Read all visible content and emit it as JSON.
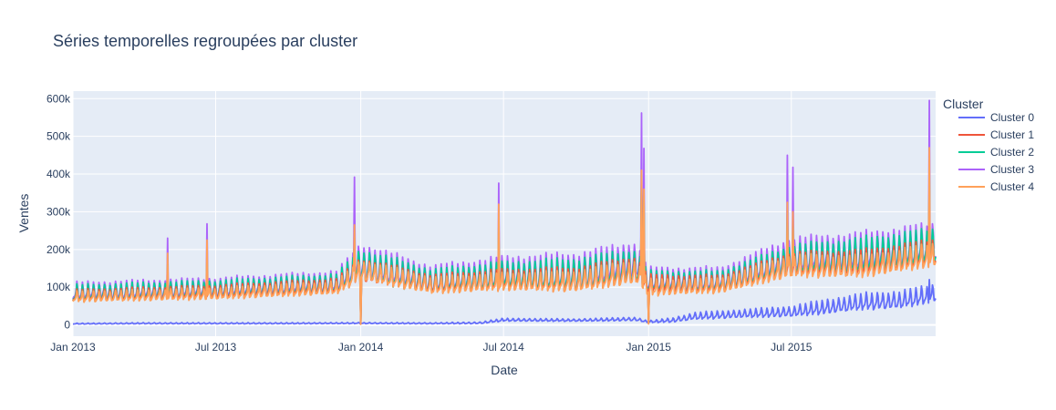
{
  "chart_data": {
    "type": "line",
    "title": "Séries temporelles regroupées par cluster",
    "xlabel": "Date",
    "ylabel": "Ventes",
    "x_range": [
      "2013-01-01",
      "2015-12-31"
    ],
    "ylim": [
      -30000,
      620000
    ],
    "x_ticks": [
      {
        "date": "2013-01-01",
        "label": "Jan 2013"
      },
      {
        "date": "2013-07-01",
        "label": "Jul 2013"
      },
      {
        "date": "2014-01-01",
        "label": "Jan 2014"
      },
      {
        "date": "2014-07-01",
        "label": "Jul 2014"
      },
      {
        "date": "2015-01-01",
        "label": "Jan 2015"
      },
      {
        "date": "2015-07-01",
        "label": "Jul 2015"
      }
    ],
    "y_ticks": [
      {
        "value": 0,
        "label": "0"
      },
      {
        "value": 100000,
        "label": "100k"
      },
      {
        "value": 200000,
        "label": "200k"
      },
      {
        "value": 300000,
        "label": "300k"
      },
      {
        "value": 400000,
        "label": "400k"
      },
      {
        "value": 500000,
        "label": "500k"
      },
      {
        "value": 600000,
        "label": "600k"
      }
    ],
    "grid": true,
    "legend": {
      "title": "Cluster",
      "position": "right"
    },
    "series": [
      {
        "name": "Cluster 0",
        "color": "#636efa",
        "x": [
          "2013-01-01",
          "2013-04-01",
          "2013-07-01",
          "2013-10-01",
          "2014-01-01",
          "2014-04-01",
          "2014-06-01",
          "2014-07-01",
          "2014-10-01",
          "2014-12-15",
          "2015-01-01",
          "2015-02-01",
          "2015-03-01",
          "2015-05-01",
          "2015-07-01",
          "2015-08-15",
          "2015-10-01",
          "2015-11-15",
          "2015-12-31"
        ],
        "y": [
          3000,
          4000,
          4000,
          4000,
          4500,
          4000,
          5000,
          13000,
          12000,
          15000,
          8000,
          12000,
          22000,
          28000,
          33000,
          45000,
          58000,
          62000,
          80000
        ],
        "amp": [
          1500,
          2000,
          2000,
          2000,
          2000,
          2000,
          3000,
          5000,
          4000,
          6000,
          3000,
          8000,
          12000,
          14000,
          18000,
          25000,
          28000,
          30000,
          30000
        ]
      },
      {
        "name": "Cluster 1",
        "color": "#ef553b",
        "x": [
          "2013-01-01",
          "2013-07-01",
          "2013-12-01",
          "2014-01-01",
          "2014-04-01",
          "2014-07-01",
          "2014-10-01",
          "2014-12-15",
          "2015-01-01",
          "2015-04-01",
          "2015-07-01",
          "2015-10-01",
          "2015-12-31"
        ],
        "y": [
          75000,
          85000,
          100000,
          140000,
          105000,
          115000,
          115000,
          140000,
          105000,
          105000,
          155000,
          160000,
          185000
        ],
        "amp": [
          20000,
          22000,
          25000,
          40000,
          30000,
          35000,
          40000,
          45000,
          30000,
          28000,
          40000,
          42000,
          45000
        ]
      },
      {
        "name": "Cluster 2",
        "color": "#00cc96",
        "x": [
          "2013-01-01",
          "2013-07-01",
          "2013-12-01",
          "2014-01-01",
          "2014-04-01",
          "2014-07-01",
          "2014-10-01",
          "2014-12-15",
          "2015-01-01",
          "2015-04-01",
          "2015-07-01",
          "2015-10-01",
          "2015-12-31"
        ],
        "y": [
          80000,
          90000,
          105000,
          150000,
          110000,
          125000,
          125000,
          150000,
          110000,
          110000,
          165000,
          175000,
          200000
        ],
        "amp": [
          28000,
          30000,
          32000,
          55000,
          40000,
          45000,
          55000,
          55000,
          35000,
          35000,
          50000,
          60000,
          60000
        ]
      },
      {
        "name": "Cluster 3",
        "color": "#ab63fa",
        "x": [
          "2013-01-01",
          "2013-07-01",
          "2013-12-01",
          "2014-01-01",
          "2014-04-01",
          "2014-07-01",
          "2014-10-01",
          "2014-12-15",
          "2015-01-01",
          "2015-04-01",
          "2015-07-01",
          "2015-10-01",
          "2015-12-31"
        ],
        "y": [
          85000,
          95000,
          110000,
          160000,
          115000,
          130000,
          130000,
          165000,
          115000,
          115000,
          175000,
          185000,
          205000
        ],
        "amp": [
          30000,
          32000,
          35000,
          60000,
          45000,
          55000,
          65000,
          60000,
          40000,
          40000,
          60000,
          65000,
          70000
        ]
      },
      {
        "name": "Cluster 4",
        "color": "#ffa15a",
        "x": [
          "2013-01-01",
          "2013-07-01",
          "2013-12-01",
          "2014-01-01",
          "2014-04-01",
          "2014-07-01",
          "2014-10-01",
          "2014-12-15",
          "2015-01-01",
          "2015-04-01",
          "2015-07-01",
          "2015-10-01",
          "2015-12-31"
        ],
        "y": [
          72000,
          80000,
          95000,
          140000,
          100000,
          110000,
          110000,
          135000,
          95000,
          100000,
          150000,
          150000,
          180000
        ],
        "amp": [
          18000,
          20000,
          22000,
          35000,
          28000,
          30000,
          35000,
          40000,
          28000,
          25000,
          38000,
          38000,
          40000
        ]
      }
    ],
    "spikes": [
      {
        "date": "2013-05-01",
        "values": {
          "Cluster 3": 230000,
          "Cluster 4": 190000,
          "Cluster 2": 160000
        }
      },
      {
        "date": "2013-06-20",
        "values": {
          "Cluster 3": 268000,
          "Cluster 4": 225000,
          "Cluster 2": 180000
        }
      },
      {
        "date": "2013-12-24",
        "values": {
          "Cluster 3": 392000,
          "Cluster 4": 265000,
          "Cluster 2": 230000,
          "Cluster 1": 230000
        }
      },
      {
        "date": "2014-01-01",
        "values": {
          "Cluster 4": 2000,
          "Cluster 1": 2000,
          "Cluster 2": 5000,
          "Cluster 3": 5000
        }
      },
      {
        "date": "2014-06-25",
        "values": {
          "Cluster 3": 376000,
          "Cluster 4": 320000,
          "Cluster 2": 260000
        }
      },
      {
        "date": "2014-12-23",
        "values": {
          "Cluster 3": 562000,
          "Cluster 4": 410000,
          "Cluster 2": 400000,
          "Cluster 1": 380000
        }
      },
      {
        "date": "2014-12-26",
        "values": {
          "Cluster 3": 468000,
          "Cluster 4": 360000,
          "Cluster 2": 330000
        }
      },
      {
        "date": "2015-01-01",
        "values": {
          "Cluster 4": 3000,
          "Cluster 1": 3000,
          "Cluster 2": 8000,
          "Cluster 3": 8000
        }
      },
      {
        "date": "2015-06-26",
        "values": {
          "Cluster 3": 450000,
          "Cluster 4": 325000,
          "Cluster 2": 300000
        }
      },
      {
        "date": "2015-07-03",
        "values": {
          "Cluster 3": 418000,
          "Cluster 4": 300000,
          "Cluster 2": 280000
        }
      },
      {
        "date": "2015-12-23",
        "values": {
          "Cluster 3": 595000,
          "Cluster 4": 470000,
          "Cluster 2": 400000,
          "Cluster 1": 380000,
          "Cluster 0": 120000
        }
      }
    ]
  }
}
